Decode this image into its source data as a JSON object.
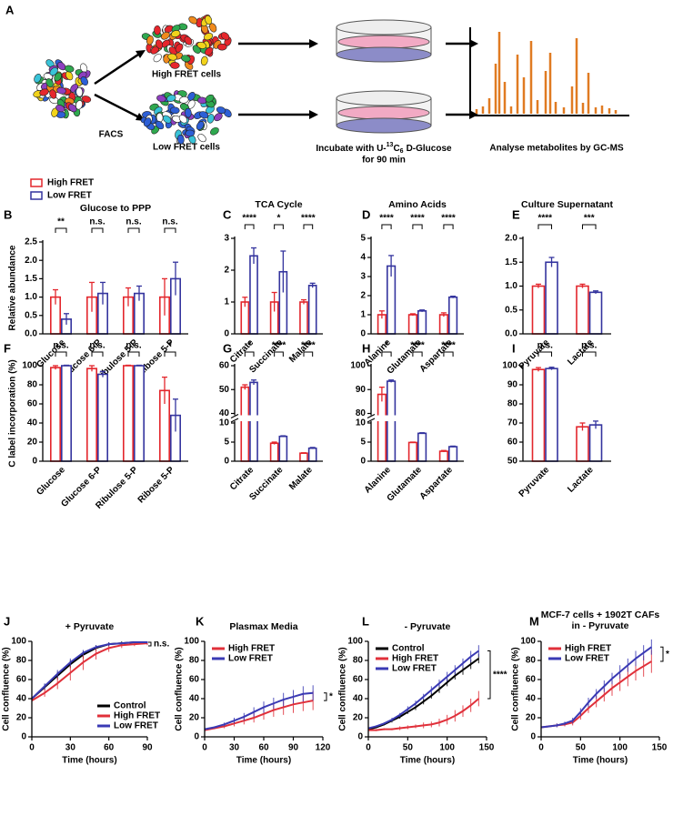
{
  "diagram": {
    "panel": "A",
    "sort_label": "FACS",
    "high_label": "High FRET cells",
    "low_label": "Low FRET cells",
    "incubate": [
      "Incubate with U-",
      "13",
      "C",
      "6",
      "D-Glucose"
    ],
    "incubate_line2": "for 90 min",
    "analyse": "Analyse metabolites by GC-MS"
  },
  "chart_data": [
    {
      "type": "bar",
      "panel": "B",
      "title": "Glucose to PPP",
      "ylabel": "Relative  abundance",
      "legend": "above",
      "categories": [
        "Glucose",
        "Glucose 6-P",
        "Ribulose 5-P",
        "Ribose 5-P"
      ],
      "series": [
        {
          "name": "High FRET",
          "color": "#e3262c",
          "values": [
            1,
            1,
            1,
            1
          ],
          "errors": [
            0.2,
            0.4,
            0.25,
            0.5
          ]
        },
        {
          "name": "Low FRET",
          "color": "#34349e",
          "values": [
            0.4,
            1.1,
            1.1,
            1.5
          ],
          "errors": [
            0.15,
            0.3,
            0.2,
            0.45
          ]
        }
      ],
      "significance": [
        "**",
        "n.s.",
        "n.s.",
        "n.s."
      ],
      "ylim": [
        0,
        2.5
      ],
      "yticks": [
        {
          "value": 0,
          "label": "0.0"
        },
        0.5,
        {
          "value": 1,
          "label": "1.0"
        },
        1.5,
        {
          "value": 2,
          "label": "2.0"
        },
        2.5
      ]
    },
    {
      "type": "bar",
      "panel": "C",
      "title": "TCA Cycle",
      "categories": [
        "Citrate",
        "Succinate",
        "Malate"
      ],
      "series": [
        {
          "name": "High FRET",
          "color": "#e3262c",
          "values": [
            1,
            1,
            1
          ],
          "errors": [
            0.15,
            0.3,
            0.07
          ]
        },
        {
          "name": "Low FRET",
          "color": "#34349e",
          "values": [
            2.45,
            1.95,
            1.52
          ],
          "errors": [
            0.25,
            0.65,
            0.07
          ]
        }
      ],
      "significance": [
        "****",
        "*",
        "****"
      ],
      "ylim": [
        0,
        3
      ],
      "yticks": [
        0,
        1,
        2,
        3
      ]
    },
    {
      "type": "bar",
      "panel": "D",
      "title": "Amino Acids",
      "categories": [
        "Alanine",
        "Glutamate",
        "Aspartate"
      ],
      "series": [
        {
          "name": "High FRET",
          "color": "#e3262c",
          "values": [
            1,
            1,
            1
          ],
          "errors": [
            0.2,
            0.05,
            0.1
          ]
        },
        {
          "name": "Low FRET",
          "color": "#34349e",
          "values": [
            3.55,
            1.2,
            1.92
          ],
          "errors": [
            0.55,
            0.05,
            0.05
          ]
        }
      ],
      "significance": [
        "****",
        "****",
        "****"
      ],
      "ylim": [
        0,
        5
      ],
      "yticks": [
        0,
        1,
        2,
        3,
        4,
        5
      ]
    },
    {
      "type": "bar",
      "panel": "E",
      "title": "Culture Supernatant",
      "categories": [
        "Pyruvate",
        "Lactate"
      ],
      "series": [
        {
          "name": "High FRET",
          "color": "#e3262c",
          "values": [
            1,
            1
          ],
          "errors": [
            0.04,
            0.04
          ]
        },
        {
          "name": "Low FRET",
          "color": "#34349e",
          "values": [
            1.5,
            0.87
          ],
          "errors": [
            0.1,
            0.03
          ]
        }
      ],
      "significance": [
        "****",
        "***"
      ],
      "ylim": [
        0,
        2
      ],
      "yticks": [
        {
          "value": 0,
          "label": "0.0"
        },
        0.5,
        {
          "value": 1,
          "label": "1.0"
        },
        1.5,
        {
          "value": 2,
          "label": "2.0"
        }
      ]
    },
    {
      "type": "bar",
      "panel": "F",
      "ylabel": "C label incorporation (%)",
      "categories": [
        "Glucose",
        "Glucose 6-P",
        "Ribulose 5-P",
        "Ribose 5-P"
      ],
      "series": [
        {
          "name": "High FRET",
          "color": "#e3262c",
          "values": [
            98,
            97,
            100,
            74
          ],
          "errors": [
            2,
            3,
            0.5,
            14
          ]
        },
        {
          "name": "Low FRET",
          "color": "#34349e",
          "values": [
            100,
            91,
            100,
            48
          ],
          "errors": [
            0.5,
            3,
            0.5,
            17
          ]
        }
      ],
      "significance": [
        "n.s.",
        "n.s.",
        "n.s.",
        "*"
      ],
      "ylim": [
        0,
        100
      ],
      "yticks": [
        0,
        20,
        40,
        60,
        80,
        100
      ]
    },
    {
      "type": "bar",
      "panel": "G",
      "categories": [
        "Citrate",
        "Succinate",
        "Malate"
      ],
      "series": [
        {
          "name": "High FRET",
          "color": "#e3262c",
          "values": [
            51,
            4.7,
            2.1
          ],
          "errors": [
            1,
            0.3,
            0.1
          ]
        },
        {
          "name": "Low FRET",
          "color": "#34349e",
          "values": [
            53,
            6.5,
            3.4
          ],
          "errors": [
            1,
            0.15,
            0.2
          ]
        }
      ],
      "significance": [
        "*",
        "****",
        "****"
      ],
      "ylim": [
        0,
        60
      ],
      "axis_break": [
        10,
        40
      ],
      "yticks": [
        0,
        5,
        10,
        40,
        50,
        60
      ]
    },
    {
      "type": "bar",
      "panel": "H",
      "categories": [
        "Alanine",
        "Glutamate",
        "Aspartate"
      ],
      "series": [
        {
          "name": "High FRET",
          "color": "#e3262c",
          "values": [
            88,
            4.9,
            2.6
          ],
          "errors": [
            3,
            0.1,
            0.2
          ]
        },
        {
          "name": "Low FRET",
          "color": "#34349e",
          "values": [
            93.5,
            7.3,
            3.8
          ],
          "errors": [
            0.5,
            0.15,
            0.15
          ]
        }
      ],
      "significance": [
        "*",
        "****",
        "****"
      ],
      "ylim": [
        0,
        100
      ],
      "axis_break": [
        10,
        80
      ],
      "yticks": [
        0,
        5,
        10,
        80,
        90,
        100
      ]
    },
    {
      "type": "bar",
      "panel": "I",
      "categories": [
        "Pyruvate",
        "Lactate"
      ],
      "series": [
        {
          "name": "High FRET",
          "color": "#e3262c",
          "values": [
            98,
            68
          ],
          "errors": [
            1,
            2
          ]
        },
        {
          "name": "Low FRET",
          "color": "#34349e",
          "values": [
            98.5,
            69
          ],
          "errors": [
            0.7,
            2
          ]
        }
      ],
      "significance": [
        "n.s.",
        "n.s."
      ],
      "ylim": [
        50,
        100
      ],
      "yticks": [
        50,
        60,
        70,
        80,
        90,
        100
      ]
    },
    {
      "type": "line",
      "panel": "J",
      "title": "+ Pyruvate",
      "ylabel": "Cell confluence (%)",
      "xlabel": "Time (hours)",
      "legend": "bottom-right",
      "annotation": "n.s.",
      "x": [
        0,
        10,
        20,
        30,
        40,
        50,
        60,
        70,
        80,
        90
      ],
      "xlim": [
        0,
        90
      ],
      "xticks": [
        0,
        30,
        60,
        90
      ],
      "ylim": [
        0,
        100
      ],
      "yticks": [
        0,
        20,
        40,
        60,
        80,
        100
      ],
      "series": [
        {
          "name": "Control",
          "color": "#000000",
          "values": [
            40,
            52,
            64,
            76,
            86,
            93,
            97,
            98,
            99,
            99
          ],
          "errors": [
            2,
            3,
            4,
            4,
            4,
            3,
            2,
            2,
            1,
            1
          ]
        },
        {
          "name": "High FRET",
          "color": "#e0303a",
          "values": [
            38,
            46,
            56,
            67,
            78,
            87,
            93,
            96,
            97,
            98
          ],
          "errors": [
            2,
            4,
            6,
            8,
            8,
            6,
            4,
            3,
            2,
            2
          ]
        },
        {
          "name": "Low FRET",
          "color": "#3a3ab4",
          "values": [
            40,
            53,
            66,
            78,
            88,
            94,
            97,
            98,
            99,
            99
          ],
          "errors": [
            2,
            3,
            4,
            4,
            3,
            2,
            2,
            1,
            1,
            1
          ]
        }
      ]
    },
    {
      "type": "line",
      "panel": "K",
      "title": "Plasmax Media",
      "ylabel": "Cell confluence (%)",
      "xlabel": "Time (hours)",
      "legend": "top-left",
      "annotation": "*",
      "x": [
        0,
        10,
        20,
        30,
        40,
        50,
        60,
        70,
        80,
        90,
        100,
        110
      ],
      "xlim": [
        0,
        120
      ],
      "xticks": [
        0,
        30,
        60,
        90,
        120
      ],
      "ylim": [
        0,
        100
      ],
      "yticks": [
        0,
        20,
        40,
        60,
        80,
        100
      ],
      "series": [
        {
          "name": "High FRET",
          "color": "#e0303a",
          "values": [
            7,
            9,
            11,
            14,
            17,
            20,
            24,
            28,
            31,
            34,
            36,
            38
          ],
          "errors": [
            1,
            1,
            2,
            3,
            4,
            5,
            6,
            7,
            8,
            9,
            9,
            10
          ]
        },
        {
          "name": "Low FRET",
          "color": "#3a3ab4",
          "values": [
            8,
            10,
            13,
            17,
            21,
            26,
            31,
            35,
            39,
            42,
            45,
            46
          ],
          "errors": [
            1,
            1,
            2,
            3,
            4,
            5,
            6,
            6,
            7,
            7,
            8,
            8
          ]
        }
      ]
    },
    {
      "type": "line",
      "panel": "L",
      "title": "- Pyruvate",
      "ylabel": "Cell confluence (%)",
      "xlabel": "Time (hours)",
      "legend": "top-left",
      "annotation": "****",
      "x": [
        0,
        10,
        20,
        30,
        40,
        50,
        60,
        70,
        80,
        90,
        100,
        110,
        120,
        130,
        140
      ],
      "xlim": [
        0,
        150
      ],
      "xticks": [
        0,
        50,
        100,
        150
      ],
      "ylim": [
        0,
        100
      ],
      "yticks": [
        0,
        20,
        40,
        60,
        80,
        100
      ],
      "series": [
        {
          "name": "Control",
          "color": "#000000",
          "values": [
            8,
            10,
            13,
            17,
            21,
            26,
            31,
            37,
            43,
            50,
            57,
            64,
            70,
            76,
            82
          ],
          "errors": [
            1,
            1,
            1,
            2,
            2,
            2,
            3,
            3,
            3,
            4,
            4,
            4,
            5,
            5,
            5
          ]
        },
        {
          "name": "High FRET",
          "color": "#e0303a",
          "values": [
            7,
            7,
            8,
            8,
            9,
            10,
            11,
            12,
            13,
            15,
            18,
            22,
            27,
            33,
            40
          ],
          "errors": [
            1,
            1,
            1,
            1,
            2,
            2,
            2,
            3,
            3,
            4,
            5,
            6,
            6,
            7,
            8
          ]
        },
        {
          "name": "Low FRET",
          "color": "#3a3ab4",
          "values": [
            9,
            11,
            14,
            18,
            23,
            29,
            35,
            42,
            49,
            56,
            63,
            70,
            77,
            84,
            90
          ],
          "errors": [
            1,
            1,
            1,
            2,
            2,
            3,
            3,
            3,
            4,
            4,
            5,
            5,
            5,
            6,
            6
          ]
        }
      ]
    },
    {
      "type": "line",
      "panel": "M",
      "title": [
        "MCF-7 cells + 1902T CAFs",
        "in - Pyruvate"
      ],
      "ylabel": "Cell confluence (%)",
      "xlabel": "Time (hours)",
      "legend": "top-left",
      "annotation": "*",
      "x": [
        0,
        10,
        20,
        30,
        40,
        50,
        60,
        70,
        80,
        90,
        100,
        110,
        120,
        130,
        140
      ],
      "xlim": [
        0,
        150
      ],
      "xticks": [
        0,
        50,
        100,
        150
      ],
      "ylim": [
        0,
        100
      ],
      "yticks": [
        0,
        20,
        40,
        60,
        80,
        100
      ],
      "series": [
        {
          "name": "High FRET",
          "color": "#e0303a",
          "values": [
            10,
            11,
            12,
            13,
            15,
            22,
            30,
            37,
            44,
            51,
            57,
            63,
            69,
            74,
            79
          ],
          "errors": [
            1,
            1,
            2,
            2,
            3,
            4,
            5,
            6,
            7,
            8,
            9,
            10,
            10,
            11,
            12
          ]
        },
        {
          "name": "Low FRET",
          "color": "#3a3ab4",
          "values": [
            10,
            11,
            12,
            14,
            17,
            26,
            36,
            45,
            53,
            61,
            68,
            75,
            82,
            88,
            94
          ],
          "errors": [
            1,
            1,
            2,
            2,
            3,
            4,
            5,
            5,
            6,
            6,
            7,
            7,
            8,
            8,
            8
          ]
        }
      ]
    }
  ]
}
